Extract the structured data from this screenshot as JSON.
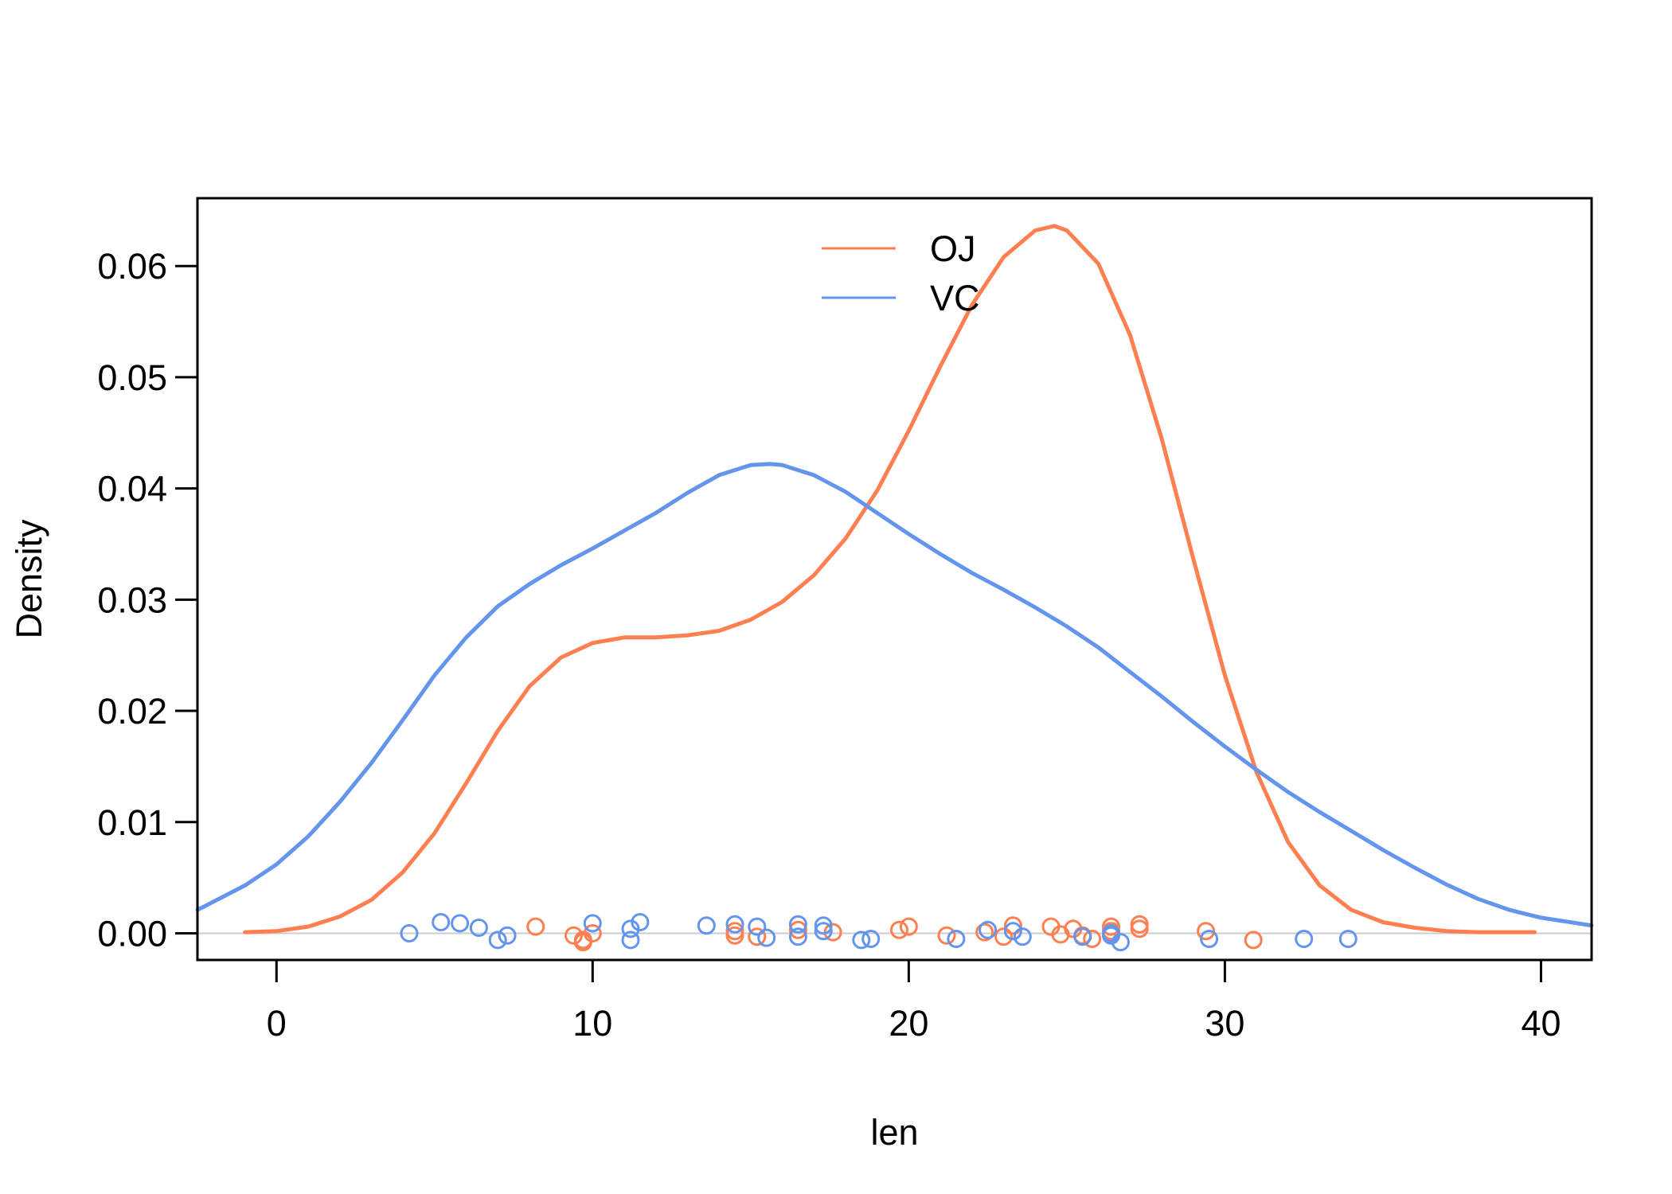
{
  "chart_data": {
    "type": "line",
    "title": "",
    "xlabel": "len",
    "ylabel": "Density",
    "xlim": [
      -2.5,
      41.6
    ],
    "ylim": [
      -0.0024,
      0.0661
    ],
    "x_ticks": [
      0,
      10,
      20,
      30,
      40
    ],
    "x_tick_labels": [
      "0",
      "10",
      "20",
      "30",
      "40"
    ],
    "y_ticks": [
      0.0,
      0.01,
      0.02,
      0.03,
      0.04,
      0.05,
      0.06
    ],
    "y_tick_labels": [
      "0.00",
      "0.01",
      "0.02",
      "0.03",
      "0.04",
      "0.05",
      "0.06"
    ],
    "grid": false,
    "baseline": 0,
    "legend": {
      "position": "top-center",
      "entries": [
        "OJ",
        "VC"
      ]
    },
    "series": [
      {
        "name": "OJ",
        "color": "#FF7F50",
        "density": {
          "x": [
            -1.0,
            0,
            1,
            2,
            3,
            4,
            5,
            6,
            7,
            8,
            9,
            10,
            11,
            12,
            13,
            14,
            15,
            16,
            17,
            18,
            19,
            20,
            21,
            22,
            23,
            24,
            24.6,
            25,
            26,
            27,
            28,
            29,
            30,
            31,
            32,
            33,
            34,
            35,
            36,
            37,
            38,
            39,
            39.8
          ],
          "y": [
            0.0001,
            0.0002,
            0.0006,
            0.0015,
            0.003,
            0.0055,
            0.009,
            0.0135,
            0.0182,
            0.0222,
            0.0248,
            0.0261,
            0.0266,
            0.0266,
            0.0268,
            0.0272,
            0.0282,
            0.0298,
            0.0322,
            0.0355,
            0.0398,
            0.0452,
            0.051,
            0.0565,
            0.0608,
            0.0632,
            0.0636,
            0.0632,
            0.0602,
            0.0538,
            0.0445,
            0.0337,
            0.0232,
            0.0145,
            0.0082,
            0.0043,
            0.0021,
            0.001,
            0.0005,
            0.0002,
            0.0001,
            0.0001,
            0.0001
          ]
        },
        "points": [
          [
            8.2,
            0.0006
          ],
          [
            9.4,
            -0.0002
          ],
          [
            9.7,
            -0.0008
          ],
          [
            9.7,
            -0.0006
          ],
          [
            10.0,
            0.0
          ],
          [
            14.5,
            0.0002
          ],
          [
            14.5,
            -0.0002
          ],
          [
            15.2,
            -0.0003
          ],
          [
            16.5,
            0.0003
          ],
          [
            17.6,
            0.0001
          ],
          [
            19.7,
            0.0003
          ],
          [
            20.0,
            0.0006
          ],
          [
            21.2,
            -0.0002
          ],
          [
            22.4,
            0.0001
          ],
          [
            23.0,
            -0.0003
          ],
          [
            23.3,
            0.0007
          ],
          [
            24.5,
            0.0006
          ],
          [
            24.8,
            -0.0001
          ],
          [
            25.2,
            0.0004
          ],
          [
            25.5,
            -0.0002
          ],
          [
            25.8,
            -0.0005
          ],
          [
            26.4,
            0.0006
          ],
          [
            26.4,
            0.0002
          ],
          [
            27.3,
            0.0008
          ],
          [
            27.3,
            0.0004
          ],
          [
            29.4,
            0.0002
          ],
          [
            30.9,
            -0.0006
          ]
        ]
      },
      {
        "name": "VC",
        "color": "#6495ED",
        "density": {
          "x": [
            -2.5,
            -1,
            0,
            1,
            2,
            3,
            4,
            5,
            6,
            7,
            8,
            9,
            10,
            11,
            12,
            13,
            14,
            15,
            15.6,
            16,
            17,
            18,
            19,
            20,
            21,
            22,
            23,
            24,
            25,
            26,
            27,
            28,
            29,
            30,
            31,
            32,
            33,
            34,
            35,
            36,
            37,
            38,
            39,
            40,
            41.6
          ],
          "y": [
            0.0021,
            0.0043,
            0.0062,
            0.0087,
            0.0118,
            0.0153,
            0.0192,
            0.0232,
            0.0266,
            0.0294,
            0.0314,
            0.0331,
            0.0346,
            0.0362,
            0.0378,
            0.0396,
            0.0412,
            0.0421,
            0.0422,
            0.0421,
            0.0412,
            0.0397,
            0.0378,
            0.0359,
            0.0341,
            0.0324,
            0.0309,
            0.0293,
            0.0276,
            0.0257,
            0.0235,
            0.0213,
            0.019,
            0.0168,
            0.0147,
            0.0127,
            0.0109,
            0.0092,
            0.0075,
            0.0059,
            0.0044,
            0.0031,
            0.0021,
            0.0014,
            0.0007
          ]
        },
        "points": [
          [
            4.2,
            0.0
          ],
          [
            5.2,
            0.001
          ],
          [
            5.8,
            0.0009
          ],
          [
            6.4,
            0.0005
          ],
          [
            7.0,
            -0.0006
          ],
          [
            7.3,
            -0.0002
          ],
          [
            10.0,
            0.0009
          ],
          [
            11.2,
            0.0004
          ],
          [
            11.2,
            -0.0006
          ],
          [
            11.5,
            0.001
          ],
          [
            13.6,
            0.0007
          ],
          [
            14.5,
            0.0008
          ],
          [
            15.2,
            0.0006
          ],
          [
            15.5,
            -0.0004
          ],
          [
            16.5,
            0.0008
          ],
          [
            16.5,
            -0.0003
          ],
          [
            17.3,
            0.0007
          ],
          [
            17.3,
            0.0002
          ],
          [
            18.5,
            -0.0006
          ],
          [
            18.8,
            -0.0005
          ],
          [
            21.5,
            -0.0005
          ],
          [
            22.5,
            0.0003
          ],
          [
            23.3,
            0.0002
          ],
          [
            23.6,
            -0.0003
          ],
          [
            25.5,
            -0.0003
          ],
          [
            26.4,
            0.0
          ],
          [
            26.4,
            -0.0002
          ],
          [
            26.7,
            -0.0008
          ],
          [
            29.5,
            -0.0005
          ],
          [
            32.5,
            -0.0005
          ],
          [
            33.9,
            -0.0005
          ]
        ]
      }
    ]
  }
}
